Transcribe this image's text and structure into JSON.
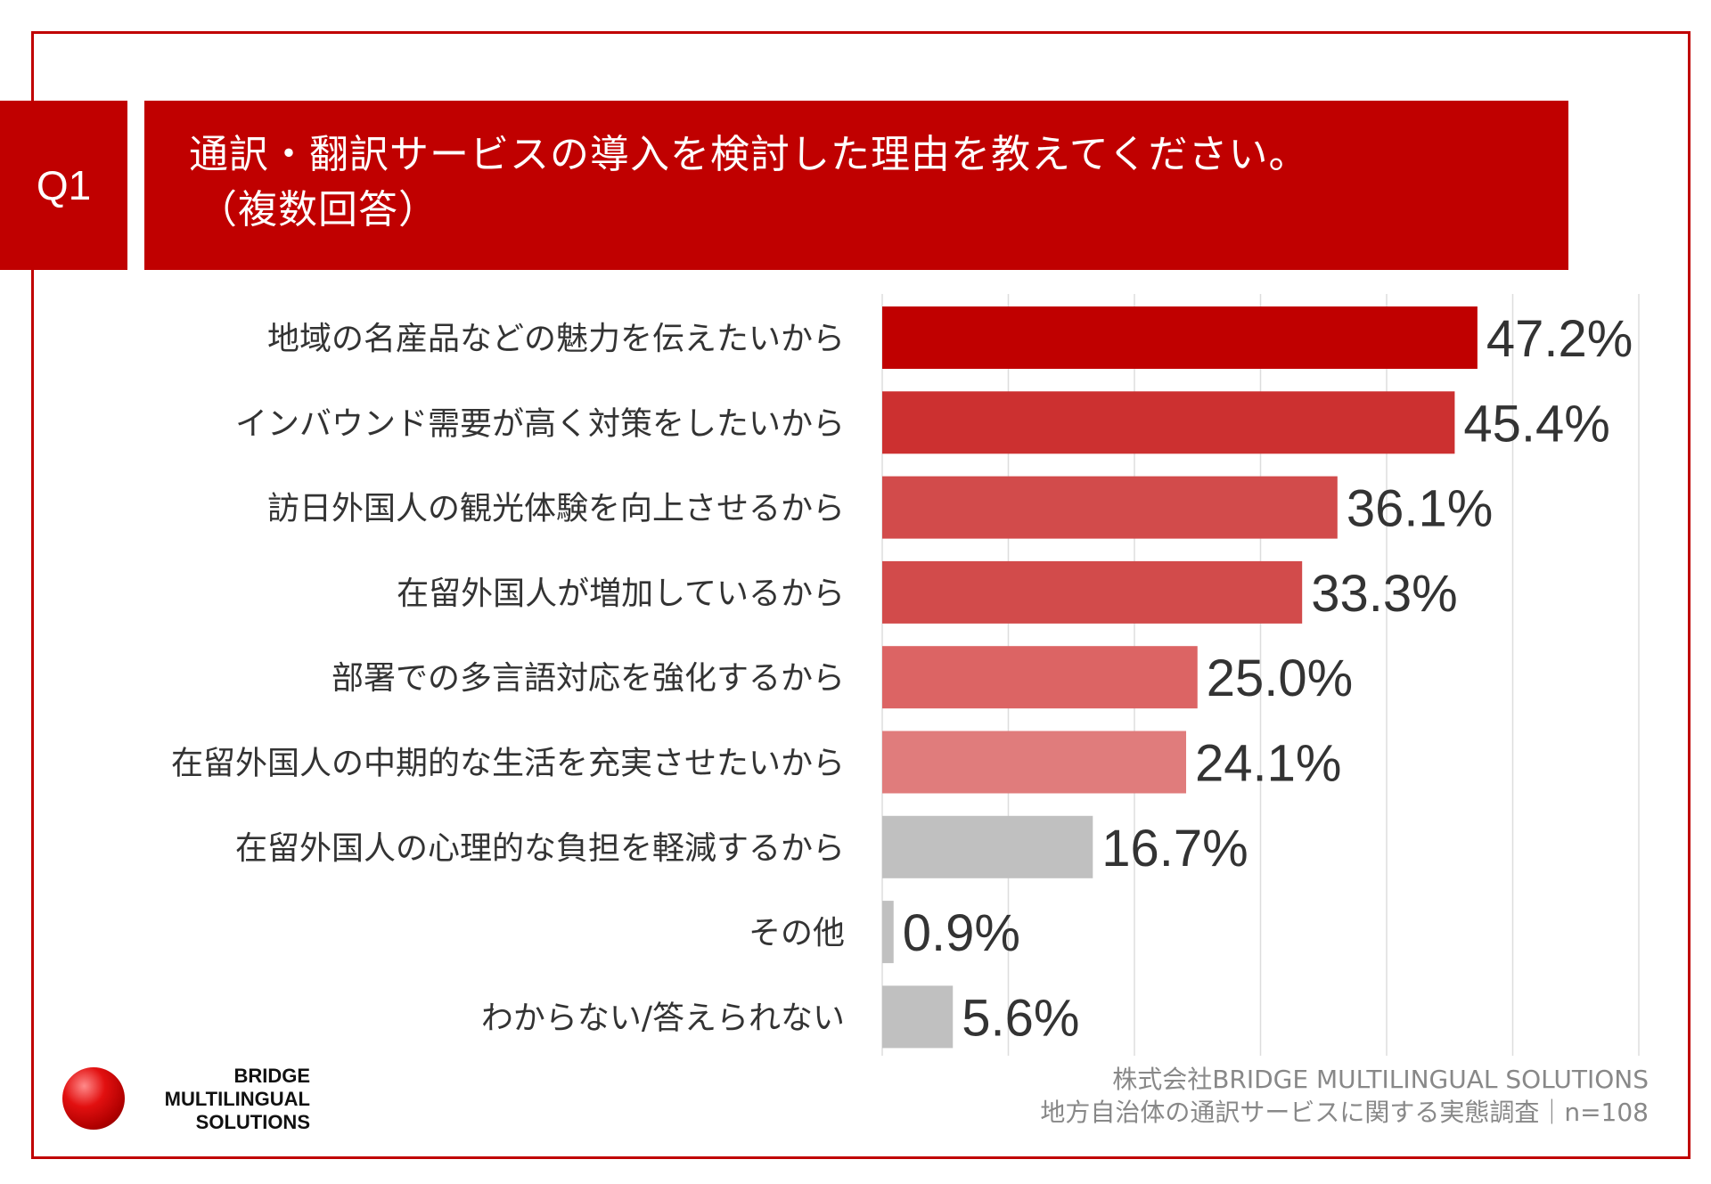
{
  "header": {
    "question_badge": "Q1",
    "title_line1": "通訳・翻訳サービスの導入を検討した理由を教えてください。",
    "title_line2": "（複数回答）"
  },
  "colors": {
    "brand": "#c00000",
    "bar_colors": [
      "#c00000",
      "#cc3030",
      "#d24b4b",
      "#d24b4b",
      "#dc6464",
      "#e07c7c",
      "#c0c0c0",
      "#c0c0c0",
      "#c0c0c0"
    ],
    "gridline": "#dddddd"
  },
  "chart_data": {
    "type": "bar",
    "orientation": "horizontal",
    "categories": [
      "地域の名産品などの魅力を伝えたいから",
      "インバウンド需要が高く対策をしたいから",
      "訪日外国人の観光体験を向上させるから",
      "在留外国人が増加しているから",
      "部署での多言語対応を強化するから",
      "在留外国人の中期的な生活を充実させたいから",
      "在留外国人の心理的な負担を軽減するから",
      "その他",
      "わからない/答えられない"
    ],
    "values": [
      47.2,
      45.4,
      36.1,
      33.3,
      25.0,
      24.1,
      16.7,
      0.9,
      5.6
    ],
    "value_labels": [
      "47.2%",
      "45.4%",
      "36.1%",
      "33.3%",
      "25.0%",
      "24.1%",
      "16.7%",
      "0.9%",
      "5.6%"
    ],
    "xlim": [
      0,
      60
    ],
    "grid": true,
    "unit": "%"
  },
  "footer": {
    "line1": "株式会社BRIDGE MULTILINGUAL SOLUTIONS",
    "line2": "地方自治体の通訳サービスに関する実態調査｜n=108"
  },
  "logo": {
    "line1": "BRIDGE",
    "line2": "MULTILINGUAL",
    "line3": "SOLUTIONS"
  }
}
